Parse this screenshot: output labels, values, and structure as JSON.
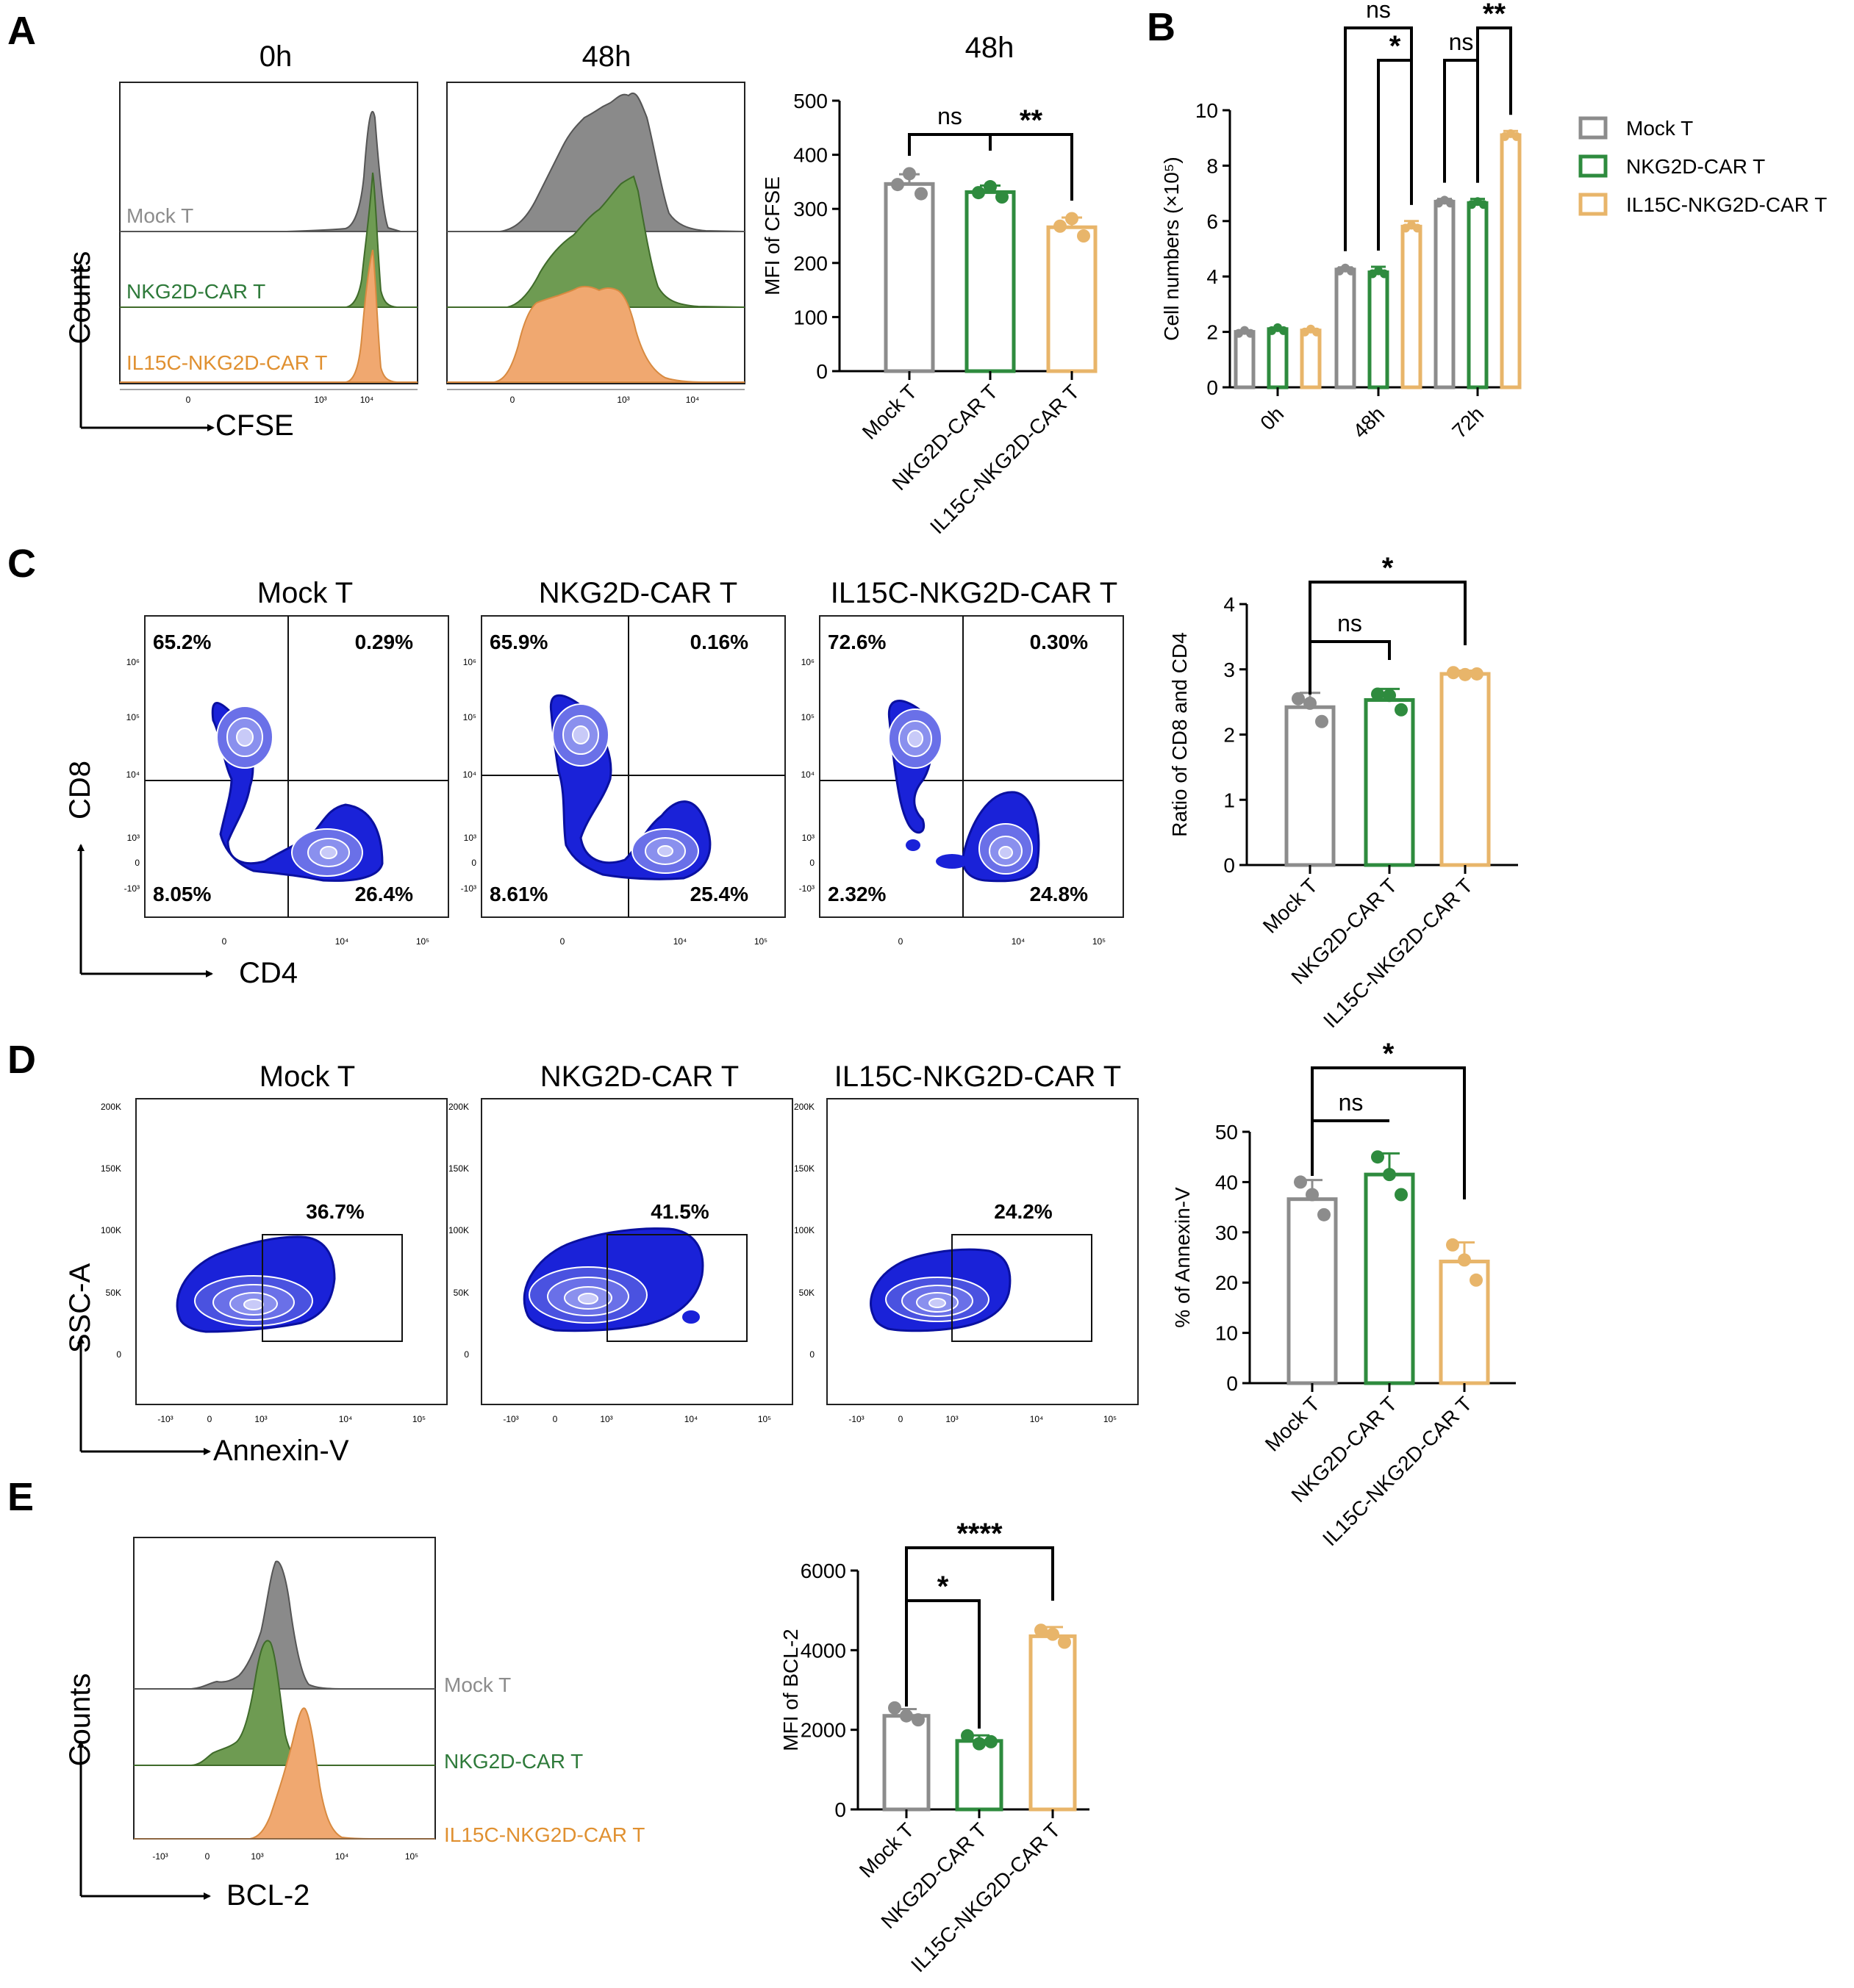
{
  "colors": {
    "mock": "#8c8c8c",
    "nkg2d": "#2e8b3e",
    "il15c": "#e8b56a",
    "flow": "#1a22d8",
    "mockFill": "#8a8a8a",
    "nkg2dFill": "#6e9b52",
    "il15cFill": "#f0a870"
  },
  "legend": [
    "Mock T",
    "NKG2D-CAR T",
    "IL15C-NKG2D-CAR T"
  ],
  "panelA": {
    "letter": "A",
    "hist_titles": [
      "0h",
      "48h"
    ],
    "counts_label": "Counts",
    "x_label": "CFSE",
    "sample_labels": [
      "Mock T",
      "NKG2D-CAR T",
      "IL15C-NKG2D-CAR T"
    ],
    "ticks_0h": [
      "0",
      "10³",
      "10⁴"
    ],
    "ticks_48h": [
      "0",
      "10³",
      "10⁴"
    ],
    "bar_title": "48h"
  },
  "panelB": {
    "letter": "B"
  },
  "panelC": {
    "letter": "C",
    "titles": [
      "Mock T",
      "NKG2D-CAR T",
      "IL15C-NKG2D-CAR T"
    ],
    "quadrants": [
      {
        "ul": "65.2%",
        "ur": "0.29%",
        "ll": "8.05%",
        "lr": "26.4%"
      },
      {
        "ul": "65.9%",
        "ur": "0.16%",
        "ll": "8.61%",
        "lr": "25.4%"
      },
      {
        "ul": "72.6%",
        "ur": "0.30%",
        "ll": "2.32%",
        "lr": "24.8%"
      }
    ],
    "y_ticks": [
      "10⁶",
      "10⁵",
      "10⁴",
      "10³",
      "0",
      "-10³"
    ],
    "x_ticks": [
      "0",
      "10⁴",
      "10⁵"
    ],
    "y_label": "CD8",
    "x_label": "CD4"
  },
  "panelD": {
    "letter": "D",
    "titles": [
      "Mock T",
      "NKG2D-CAR T",
      "IL15C-NKG2D-CAR T"
    ],
    "gate_pct": [
      "36.7%",
      "41.5%",
      "24.2%"
    ],
    "y_ticks": [
      "200K",
      "150K",
      "100K",
      "50K",
      "0"
    ],
    "x_ticks": [
      "-10³",
      "0",
      "10³",
      "10⁴",
      "10⁵"
    ],
    "y_label": "SSC-A",
    "x_label": "Annexin-V"
  },
  "panelE": {
    "letter": "E",
    "sample_labels": [
      "Mock T",
      "NKG2D-CAR T",
      "IL15C-NKG2D-CAR T"
    ],
    "counts_label": "Counts",
    "x_label": "BCL-2",
    "x_ticks": [
      "-10³",
      "0",
      "10³",
      "10⁴",
      "10⁵"
    ]
  },
  "chart_data": [
    {
      "id": "A_bar",
      "type": "bar",
      "title": "48h",
      "categories": [
        "Mock T",
        "NKG2D-CAR T",
        "IL15C-NKG2D-CAR T"
      ],
      "values": [
        346,
        331,
        266
      ],
      "errors": [
        18,
        12,
        18
      ],
      "points": [
        [
          345,
          365,
          328
        ],
        [
          330,
          341,
          322
        ],
        [
          268,
          282,
          250
        ]
      ],
      "ylabel": "MFI of CFSE",
      "ylim": [
        0,
        500
      ],
      "yticks": [
        0,
        100,
        200,
        300,
        400,
        500
      ],
      "sig": [
        {
          "from": 0,
          "to": 1,
          "label": "ns"
        },
        {
          "from": 1,
          "to": 2,
          "label": "**"
        }
      ]
    },
    {
      "id": "B_bar",
      "type": "bar",
      "groups": [
        "0h",
        "48h",
        "72h"
      ],
      "series": [
        {
          "name": "Mock T",
          "values": [
            2.0,
            4.25,
            6.7
          ],
          "errors": [
            0.05,
            0.08,
            0.1
          ]
        },
        {
          "name": "NKG2D-CAR T",
          "values": [
            2.1,
            4.15,
            6.65
          ],
          "errors": [
            0.05,
            0.2,
            0.15
          ]
        },
        {
          "name": "IL15C-NKG2D-CAR T",
          "values": [
            2.05,
            5.8,
            9.1
          ],
          "errors": [
            0.05,
            0.2,
            0.15
          ]
        }
      ],
      "ylabel": "Cell numbers (×10⁵)",
      "ylim": [
        0,
        10
      ],
      "yticks": [
        0,
        2,
        4,
        6,
        8,
        10
      ],
      "sig": [
        {
          "group": 1,
          "from": 0,
          "to": 2,
          "label": "ns",
          "level": 2
        },
        {
          "group": 1,
          "from": 1,
          "to": 2,
          "label": "*",
          "level": 1
        },
        {
          "group": 2,
          "from": 0,
          "to": 1,
          "label": "ns",
          "level": 1
        },
        {
          "group": 2,
          "from": 1,
          "to": 2,
          "label": "**",
          "level": 2
        }
      ]
    },
    {
      "id": "C_bar",
      "type": "bar",
      "categories": [
        "Mock T",
        "NKG2D-CAR T",
        "IL15C-NKG2D-CAR T"
      ],
      "values": [
        2.42,
        2.53,
        2.93
      ],
      "errors": [
        0.22,
        0.17,
        0.05
      ],
      "points": [
        [
          2.55,
          2.48,
          2.2
        ],
        [
          2.62,
          2.6,
          2.38
        ],
        [
          2.95,
          2.92,
          2.93
        ]
      ],
      "ylabel": "Ratio of CD8 and CD4",
      "ylim": [
        0,
        4
      ],
      "yticks": [
        0,
        1,
        2,
        3,
        4
      ],
      "sig": [
        {
          "from": 0,
          "to": 1,
          "label": "ns"
        },
        {
          "from": 0,
          "to": 2,
          "label": "*"
        }
      ]
    },
    {
      "id": "D_bar",
      "type": "bar",
      "categories": [
        "Mock T",
        "NKG2D-CAR T",
        "IL15C-NKG2D-CAR T"
      ],
      "values": [
        36.6,
        41.5,
        24.2
      ],
      "errors": [
        3.8,
        4.2,
        3.8
      ],
      "points": [
        [
          40.0,
          37.5,
          33.5
        ],
        [
          45.0,
          41.5,
          37.5
        ],
        [
          27.5,
          24.5,
          20.5
        ]
      ],
      "ylabel": "% of Annexin-V",
      "ylim": [
        0,
        50
      ],
      "yticks": [
        0,
        10,
        20,
        30,
        40,
        50
      ],
      "sig": [
        {
          "from": 0,
          "to": 1,
          "label": "ns"
        },
        {
          "from": 0,
          "to": 2,
          "label": "*"
        }
      ]
    },
    {
      "id": "E_bar",
      "type": "bar",
      "categories": [
        "Mock T",
        "NKG2D-CAR T",
        "IL15C-NKG2D-CAR T"
      ],
      "values": [
        2350,
        1720,
        4350
      ],
      "errors": [
        170,
        140,
        230
      ],
      "points": [
        [
          2550,
          2350,
          2250
        ],
        [
          1850,
          1650,
          1700
        ],
        [
          4500,
          4400,
          4200
        ]
      ],
      "ylabel": "MFI of BCL-2",
      "ylim": [
        0,
        6000
      ],
      "yticks": [
        0,
        2000,
        4000,
        6000
      ],
      "sig": [
        {
          "from": 0,
          "to": 1,
          "label": "*"
        },
        {
          "from": 0,
          "to": 2,
          "label": "****"
        }
      ]
    }
  ]
}
